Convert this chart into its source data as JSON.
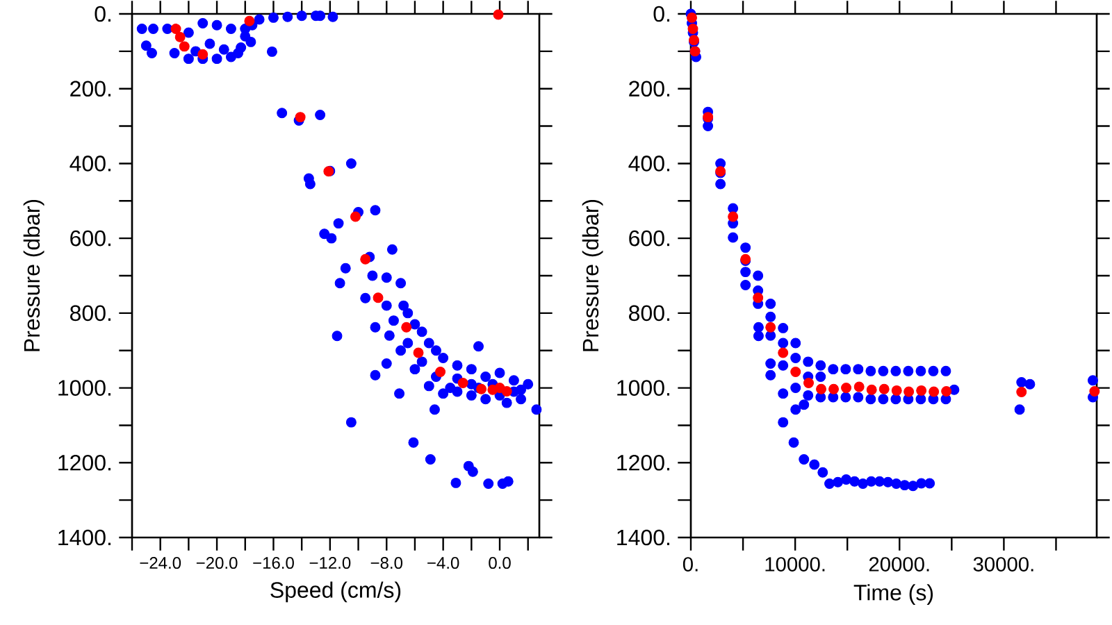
{
  "chart_data": [
    {
      "type": "scatter",
      "xlabel": "Speed (cm/s)",
      "ylabel": "Pressure (dbar)",
      "marker": "circle",
      "xlim": [
        -26,
        2.8
      ],
      "ylim": [
        1400,
        0
      ],
      "xticks": [
        {
          "value": -26,
          "label": null
        },
        {
          "value": -24,
          "label": "−24.0"
        },
        {
          "value": -22,
          "label": null
        },
        {
          "value": -20,
          "label": "−20.0"
        },
        {
          "value": -18,
          "label": null
        },
        {
          "value": -16,
          "label": "−16.0"
        },
        {
          "value": -14,
          "label": null
        },
        {
          "value": -12,
          "label": "−12.0"
        },
        {
          "value": -10,
          "label": null
        },
        {
          "value": -8,
          "label": "−8.0"
        },
        {
          "value": -6,
          "label": null
        },
        {
          "value": -4,
          "label": "−4.0"
        },
        {
          "value": -2,
          "label": null
        },
        {
          "value": 0,
          "label": "0.0"
        },
        {
          "value": 2,
          "label": null
        }
      ],
      "yticks": [
        {
          "value": 0,
          "label": "0."
        },
        {
          "value": 100,
          "label": null
        },
        {
          "value": 200,
          "label": "200."
        },
        {
          "value": 300,
          "label": null
        },
        {
          "value": 400,
          "label": "400."
        },
        {
          "value": 500,
          "label": null
        },
        {
          "value": 600,
          "label": "600."
        },
        {
          "value": 700,
          "label": null
        },
        {
          "value": 800,
          "label": "800."
        },
        {
          "value": 900,
          "label": null
        },
        {
          "value": 1000,
          "label": "1000."
        },
        {
          "value": 1100,
          "label": null
        },
        {
          "value": 1200,
          "label": "1200."
        },
        {
          "value": 1300,
          "label": null
        },
        {
          "value": 1400,
          "label": "1400."
        }
      ],
      "series": [
        {
          "color": "#0000ff",
          "x": [
            -25.3,
            -24.5,
            -23.5,
            -25,
            -24.6,
            -23,
            -22,
            -21,
            -20,
            -19,
            -18.5,
            -18.3,
            -18,
            -19,
            -20,
            -21,
            -22,
            -20.5,
            -19.5,
            -21.5,
            -17.6,
            -16.1,
            -18,
            -17.5,
            -17,
            -16,
            -15,
            -14,
            -13,
            -12.7,
            -11.8,
            -15.4,
            -14.2,
            -12.7,
            -13.5,
            -12,
            -10.5,
            -13.4,
            -11.4,
            -10,
            -8.8,
            -12.4,
            -11.9,
            -10.9,
            -9.2,
            -7.6,
            -11.3,
            -9,
            -8,
            -7,
            -9.5,
            -8,
            -6.8,
            -7.5,
            -6,
            -7.8,
            -6.5,
            -5,
            -7,
            -5.5,
            -4,
            -6,
            -4.5,
            -3,
            -2,
            -5,
            -3.5,
            -2,
            -1,
            0,
            1,
            2,
            -1,
            0.5,
            1.5,
            -3,
            -2,
            0,
            1,
            -6.5,
            -5.5,
            -4.5,
            -3,
            -1.5,
            -0.5,
            1.5,
            -4,
            -11.5,
            -8.8,
            -8,
            -8.8,
            -7.1,
            -10.5,
            -6.1,
            -4.9,
            -4.6,
            -2.2,
            -1.9,
            -3.1,
            -0.8,
            0.2,
            0.6,
            2.6,
            -1.5
          ],
          "values": [
            40,
            40,
            40,
            85,
            105,
            105,
            120,
            120,
            120,
            115,
            105,
            90,
            60,
            40,
            30,
            25,
            50,
            80,
            95,
            100,
            75,
            101,
            40,
            30,
            15,
            10,
            8,
            5,
            5,
            5,
            8,
            265,
            285,
            270,
            440,
            420,
            400,
            455,
            560,
            530,
            525,
            588,
            600,
            680,
            650,
            630,
            720,
            700,
            705,
            720,
            760,
            780,
            780,
            820,
            830,
            860,
            880,
            880,
            900,
            930,
            920,
            950,
            970,
            940,
            950,
            995,
            1000,
            990,
            970,
            960,
            980,
            990,
            1030,
            1040,
            1030,
            1010,
            1020,
            1020,
            1010,
            800,
            850,
            900,
            975,
            1000,
            990,
            1005,
            1015,
            861,
            838,
            935,
            966,
            1015,
            1092,
            1146,
            1191,
            1058,
            1209,
            1224,
            1254,
            1256,
            1256,
            1250,
            1058,
            889
          ]
        },
        {
          "color": "#ff0000",
          "x": [
            -22.9,
            -22.6,
            -22.3,
            -21,
            -17.7,
            -0.1,
            -14.1,
            -12.1,
            -10.2,
            -9.5,
            -8.6,
            -6.6,
            -5.75,
            -4.2,
            -2.6,
            -1.3,
            -0.5,
            0,
            0.5
          ],
          "values": [
            40,
            62,
            87,
            108,
            19,
            2,
            276,
            421,
            542,
            656,
            759,
            838,
            906,
            957,
            987,
            1003,
            1005,
            1000,
            1009
          ]
        }
      ]
    },
    {
      "type": "scatter",
      "xlabel": "Time (s)",
      "ylabel": "Pressure (dbar)",
      "marker": "circle",
      "xlim": [
        0,
        38900
      ],
      "ylim": [
        1400,
        0
      ],
      "xticks": [
        {
          "value": 0,
          "label": "0."
        },
        {
          "value": 5000,
          "label": null
        },
        {
          "value": 10000,
          "label": "10000."
        },
        {
          "value": 15000,
          "label": null
        },
        {
          "value": 20000,
          "label": "20000."
        },
        {
          "value": 25000,
          "label": null
        },
        {
          "value": 30000,
          "label": "30000."
        },
        {
          "value": 35000,
          "label": null
        }
      ],
      "yticks": [
        {
          "value": 0,
          "label": "0."
        },
        {
          "value": 100,
          "label": null
        },
        {
          "value": 200,
          "label": "200."
        },
        {
          "value": 300,
          "label": null
        },
        {
          "value": 400,
          "label": "400."
        },
        {
          "value": 500,
          "label": null
        },
        {
          "value": 600,
          "label": "600."
        },
        {
          "value": 700,
          "label": null
        },
        {
          "value": 800,
          "label": "800."
        },
        {
          "value": 900,
          "label": null
        },
        {
          "value": 1000,
          "label": "1000."
        },
        {
          "value": 1100,
          "label": null
        },
        {
          "value": 1200,
          "label": "1200."
        },
        {
          "value": 1300,
          "label": null
        },
        {
          "value": 1400,
          "label": "1400."
        }
      ],
      "series": [
        {
          "color": "#0000ff",
          "x": [
            0,
            100,
            200,
            300,
            400,
            500,
            1640,
            1640,
            1640,
            2840,
            2840,
            2840,
            4040,
            4040,
            4040,
            5240,
            5240,
            5240,
            5240,
            6440,
            6440,
            6440,
            6490,
            6490,
            7640,
            7640,
            7640,
            7640,
            7640,
            8840,
            8840,
            8840,
            8840,
            8840,
            10040,
            10040,
            10040,
            10040,
            9860,
            11240,
            11240,
            11240,
            10840,
            10840,
            12440,
            12440,
            12440,
            11840,
            13640,
            13640,
            12640,
            14840,
            14840,
            16040,
            16040,
            17240,
            17240,
            18440,
            18440,
            19640,
            19640,
            20840,
            20840,
            22040,
            22040,
            23240,
            23240,
            24440,
            24440,
            25240,
            13290,
            14090,
            14890,
            15690,
            16490,
            17290,
            18090,
            18890,
            19690,
            20490,
            21290,
            22090,
            22890,
            31510,
            31690,
            32500,
            38530,
            38530
          ],
          "values": [
            0,
            25,
            50,
            75,
            100,
            115,
            262,
            280,
            300,
            400,
            425,
            455,
            520,
            560,
            598,
            625,
            660,
            690,
            725,
            700,
            740,
            775,
            838,
            861,
            775,
            810,
            860,
            935,
            966,
            840,
            880,
            940,
            1015,
            1092,
            880,
            920,
            1000,
            1058,
            1146,
            930,
            970,
            1020,
            1191,
            1045,
            940,
            970,
            1025,
            1205,
            950,
            1025,
            1226,
            950,
            1025,
            950,
            1025,
            955,
            1030,
            955,
            1030,
            955,
            1030,
            955,
            1030,
            955,
            1030,
            955,
            1030,
            955,
            1030,
            1005,
            1256,
            1252,
            1245,
            1250,
            1256,
            1250,
            1250,
            1252,
            1256,
            1260,
            1262,
            1255,
            1255,
            1058,
            985,
            990,
            980,
            1025
          ]
        },
        {
          "color": "#ff0000",
          "x": [
            100,
            200,
            300,
            400,
            1640,
            2840,
            4040,
            5240,
            6440,
            7640,
            8840,
            10040,
            11290,
            12490,
            13690,
            14890,
            16130,
            17330,
            18530,
            19730,
            20890,
            22090,
            23290,
            24490,
            31690,
            38690
          ],
          "values": [
            10,
            40,
            70,
            100,
            276,
            421,
            542,
            656,
            759,
            838,
            906,
            957,
            987,
            1003,
            1003,
            1000,
            997,
            1005,
            1003,
            1007,
            1010,
            1007,
            1010,
            1009,
            1011,
            1009
          ]
        }
      ]
    }
  ]
}
